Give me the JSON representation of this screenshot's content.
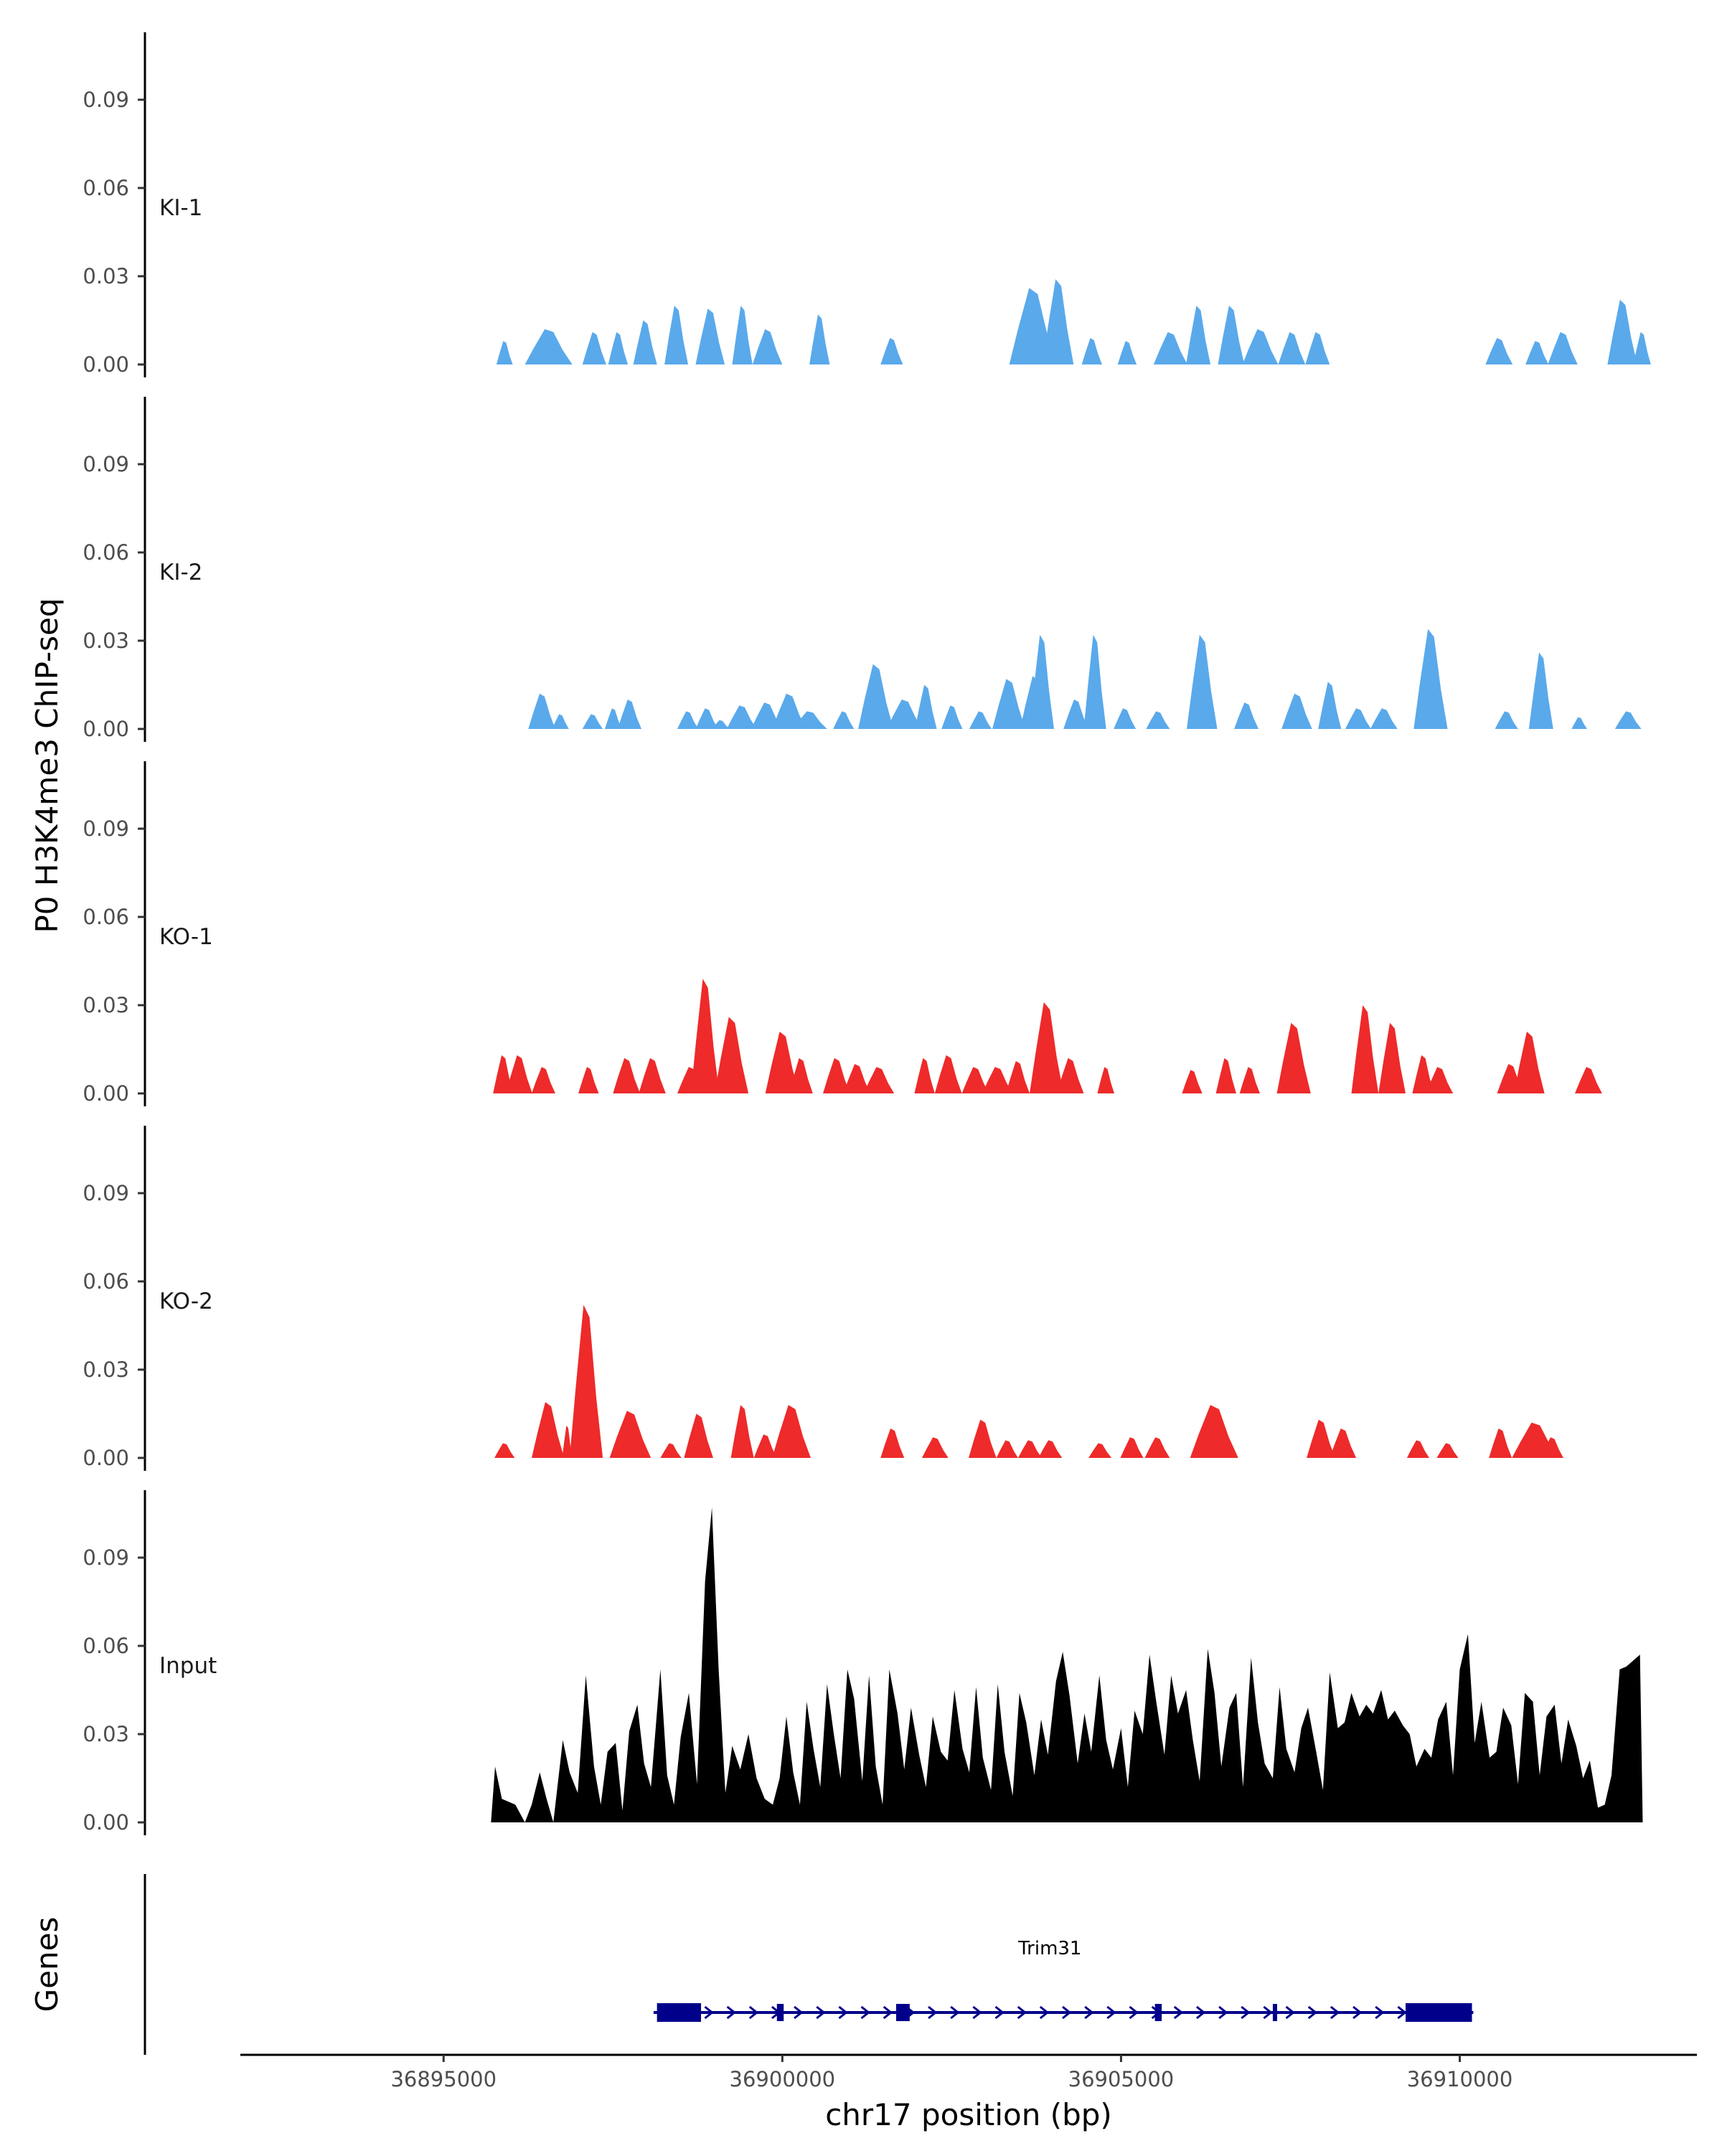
{
  "chart_data": {
    "type": "area",
    "ylabel": "P0 H3K4me3 ChIP-seq",
    "xlabel": "chr17 position (bp)",
    "gene_panel_label": "Genes",
    "xlim": [
      36892000,
      36913500
    ],
    "ylim": [
      0,
      0.11
    ],
    "xticks": [
      36895000,
      36900000,
      36905000,
      36910000
    ],
    "xtick_labels": [
      "36895000",
      "36900000",
      "36905000",
      "36910000"
    ],
    "yticks": [
      0.0,
      0.03,
      0.06,
      0.09
    ],
    "ytick_labels": [
      "0.00",
      "0.03",
      "0.06",
      "0.09"
    ],
    "colors": {
      "KI": "#5aa9eb",
      "KO": "#ee2a2a",
      "Input": "#000000",
      "gene": "#00008b"
    },
    "tracks": [
      {
        "name": "KI-1",
        "color": "#5aa9eb",
        "peaks": [
          [
            36895780,
            36896020,
            0.008
          ],
          [
            36896200,
            36896900,
            0.012
          ],
          [
            36897050,
            36897400,
            0.011
          ],
          [
            36897430,
            36897720,
            0.011
          ],
          [
            36897800,
            36898150,
            0.015
          ],
          [
            36898260,
            36898610,
            0.02
          ],
          [
            36898720,
            36899150,
            0.019
          ],
          [
            36899260,
            36899560,
            0.02
          ],
          [
            36899560,
            36900000,
            0.012
          ],
          [
            36900400,
            36900700,
            0.017
          ],
          [
            36901450,
            36901780,
            0.009
          ],
          [
            36903350,
            36904050,
            0.026
          ],
          [
            36903840,
            36904300,
            0.029
          ],
          [
            36904420,
            36904720,
            0.009
          ],
          [
            36904950,
            36905230,
            0.008
          ],
          [
            36905480,
            36905980,
            0.011
          ],
          [
            36905960,
            36906320,
            0.02
          ],
          [
            36906430,
            36906820,
            0.02
          ],
          [
            36906790,
            36907320,
            0.012
          ],
          [
            36907320,
            36907720,
            0.011
          ],
          [
            36907720,
            36908080,
            0.011
          ],
          [
            36910380,
            36910780,
            0.009
          ],
          [
            36910970,
            36911310,
            0.008
          ],
          [
            36911300,
            36911740,
            0.011
          ],
          [
            36912180,
            36912620,
            0.022
          ],
          [
            36912560,
            36912820,
            0.011
          ]
        ]
      },
      {
        "name": "KI-2",
        "color": "#5aa9eb",
        "peaks": [
          [
            36896250,
            36896650,
            0.012
          ],
          [
            36896600,
            36896850,
            0.005
          ],
          [
            36897050,
            36897350,
            0.005
          ],
          [
            36897380,
            36897630,
            0.007
          ],
          [
            36897570,
            36897920,
            0.01
          ],
          [
            36898450,
            36898760,
            0.006
          ],
          [
            36898720,
            36899050,
            0.007
          ],
          [
            36898960,
            36899220,
            0.003
          ],
          [
            36899180,
            36899620,
            0.008
          ],
          [
            36899540,
            36900000,
            0.009
          ],
          [
            36899850,
            36900350,
            0.012
          ],
          [
            36900150,
            36900660,
            0.006
          ],
          [
            36900750,
            36901060,
            0.006
          ],
          [
            36901120,
            36901640,
            0.022
          ],
          [
            36901540,
            36902070,
            0.01
          ],
          [
            36901960,
            36902280,
            0.015
          ],
          [
            36902350,
            36902660,
            0.008
          ],
          [
            36902760,
            36903090,
            0.006
          ],
          [
            36903100,
            36903590,
            0.017
          ],
          [
            36903510,
            36903950,
            0.018
          ],
          [
            36903650,
            36904010,
            0.032
          ],
          [
            36904150,
            36904520,
            0.01
          ],
          [
            36904450,
            36904780,
            0.032
          ],
          [
            36904890,
            36905220,
            0.007
          ],
          [
            36905370,
            36905720,
            0.006
          ],
          [
            36905970,
            36906420,
            0.032
          ],
          [
            36906670,
            36907030,
            0.009
          ],
          [
            36907370,
            36907820,
            0.012
          ],
          [
            36907910,
            36908250,
            0.016
          ],
          [
            36908310,
            36908690,
            0.007
          ],
          [
            36908680,
            36909080,
            0.007
          ],
          [
            36909320,
            36909820,
            0.034
          ],
          [
            36910520,
            36910860,
            0.006
          ],
          [
            36911020,
            36911380,
            0.026
          ],
          [
            36911650,
            36911880,
            0.004
          ],
          [
            36912290,
            36912680,
            0.006
          ]
        ]
      },
      {
        "name": "KO-1",
        "color": "#ee2a2a",
        "peaks": [
          [
            36895730,
            36896030,
            0.013
          ],
          [
            36895920,
            36896310,
            0.013
          ],
          [
            36896300,
            36896650,
            0.009
          ],
          [
            36896990,
            36897290,
            0.009
          ],
          [
            36897500,
            36897900,
            0.012
          ],
          [
            36897880,
            36898280,
            0.012
          ],
          [
            36898450,
            36898850,
            0.009
          ],
          [
            36898650,
            36899070,
            0.039
          ],
          [
            36899000,
            36899500,
            0.026
          ],
          [
            36899750,
            36900250,
            0.021
          ],
          [
            36900100,
            36900450,
            0.012
          ],
          [
            36900600,
            36901000,
            0.012
          ],
          [
            36900900,
            36901300,
            0.01
          ],
          [
            36901200,
            36901650,
            0.009
          ],
          [
            36901950,
            36902250,
            0.012
          ],
          [
            36902250,
            36902650,
            0.013
          ],
          [
            36902650,
            36903050,
            0.009
          ],
          [
            36902950,
            36903400,
            0.009
          ],
          [
            36903300,
            36903650,
            0.011
          ],
          [
            36903650,
            36904150,
            0.031
          ],
          [
            36904050,
            36904450,
            0.012
          ],
          [
            36904650,
            36904900,
            0.009
          ],
          [
            36905900,
            36906200,
            0.008
          ],
          [
            36906400,
            36906700,
            0.012
          ],
          [
            36906750,
            36907050,
            0.009
          ],
          [
            36907300,
            36907800,
            0.024
          ],
          [
            36908400,
            36908800,
            0.03
          ],
          [
            36908800,
            36909200,
            0.024
          ],
          [
            36909300,
            36909620,
            0.013
          ],
          [
            36909500,
            36909900,
            0.009
          ],
          [
            36910550,
            36910950,
            0.01
          ],
          [
            36910800,
            36911250,
            0.021
          ],
          [
            36911700,
            36912100,
            0.009
          ]
        ]
      },
      {
        "name": "KO-2",
        "color": "#ee2a2a",
        "peaks": [
          [
            36895750,
            36896050,
            0.005
          ],
          [
            36896300,
            36896780,
            0.019
          ],
          [
            36896750,
            36896900,
            0.011
          ],
          [
            36896860,
            36897350,
            0.052
          ],
          [
            36897450,
            36898060,
            0.016
          ],
          [
            36898200,
            36898510,
            0.005
          ],
          [
            36898550,
            36898980,
            0.015
          ],
          [
            36899240,
            36899580,
            0.018
          ],
          [
            36899580,
            36899920,
            0.008
          ],
          [
            36899850,
            36900420,
            0.018
          ],
          [
            36901450,
            36901800,
            0.01
          ],
          [
            36902060,
            36902450,
            0.007
          ],
          [
            36902750,
            36903160,
            0.013
          ],
          [
            36903160,
            36903480,
            0.006
          ],
          [
            36903480,
            36903830,
            0.006
          ],
          [
            36903780,
            36904130,
            0.006
          ],
          [
            36904520,
            36904860,
            0.005
          ],
          [
            36904990,
            36905330,
            0.007
          ],
          [
            36905350,
            36905720,
            0.007
          ],
          [
            36906020,
            36906730,
            0.018
          ],
          [
            36907740,
            36908160,
            0.013
          ],
          [
            36908080,
            36908470,
            0.01
          ],
          [
            36909220,
            36909550,
            0.006
          ],
          [
            36909660,
            36909980,
            0.005
          ],
          [
            36910430,
            36910770,
            0.01
          ],
          [
            36910770,
            36911460,
            0.012
          ],
          [
            36911200,
            36911530,
            0.007
          ]
        ]
      },
      {
        "name": "Input",
        "color": "#000000",
        "x": [
          36895700,
          36895760,
          36895860,
          36895960,
          36896060,
          36896200,
          36896300,
          36896420,
          36896520,
          36896620,
          36896760,
          36896860,
          36896980,
          36897100,
          36897220,
          36897320,
          36897420,
          36897540,
          36897640,
          36897740,
          36897860,
          36897960,
          36898060,
          36898200,
          36898300,
          36898400,
          36898500,
          36898620,
          36898740,
          36898860,
          36898960,
          36899060,
          36899160,
          36899260,
          36899380,
          36899500,
          36899620,
          36899740,
          36899860,
          36899960,
          36900060,
          36900160,
          36900260,
          36900360,
          36900460,
          36900560,
          36900660,
          36900760,
          36900860,
          36900960,
          36901060,
          36901180,
          36901280,
          36901380,
          36901480,
          36901580,
          36901700,
          36901800,
          36901900,
          36902020,
          36902120,
          36902220,
          36902340,
          36902440,
          36902540,
          36902660,
          36902760,
          36902860,
          36902960,
          36903080,
          36903180,
          36903280,
          36903400,
          36903500,
          36903600,
          36903720,
          36903820,
          36903920,
          36904040,
          36904140,
          36904240,
          36904360,
          36904460,
          36904560,
          36904680,
          36904780,
          36904880,
          36905000,
          36905100,
          36905200,
          36905320,
          36905420,
          36905520,
          36905640,
          36905740,
          36905840,
          36905960,
          36906060,
          36906160,
          36906280,
          36906380,
          36906480,
          36906600,
          36906700,
          36906800,
          36906920,
          36907020,
          36907120,
          36907240,
          36907340,
          36907440,
          36907560,
          36907660,
          36907760,
          36907880,
          36907980,
          36908080,
          36908200,
          36908300,
          36908400,
          36908520,
          36908620,
          36908720,
          36908840,
          36908940,
          36909040,
          36909160,
          36909260,
          36909360,
          36909480,
          36909580,
          36909680,
          36909800,
          36909900,
          36910000,
          36910120,
          36910220,
          36910320,
          36910440,
          36910540,
          36910640,
          36910760,
          36910860,
          36910960,
          36911080,
          36911180,
          36911280,
          36911400,
          36911500,
          36911600,
          36911720,
          36911820,
          36911920,
          36912040,
          36912140,
          36912240,
          36912360,
          36912460,
          36912560,
          36912660,
          36912700
        ],
        "y": [
          0.0,
          0.019,
          0.008,
          0.007,
          0.006,
          0.0,
          0.006,
          0.017,
          0.008,
          0.0,
          0.028,
          0.017,
          0.01,
          0.05,
          0.019,
          0.006,
          0.024,
          0.027,
          0.004,
          0.031,
          0.04,
          0.02,
          0.012,
          0.052,
          0.016,
          0.006,
          0.029,
          0.044,
          0.013,
          0.082,
          0.107,
          0.052,
          0.01,
          0.026,
          0.018,
          0.03,
          0.015,
          0.008,
          0.006,
          0.015,
          0.036,
          0.017,
          0.006,
          0.041,
          0.025,
          0.012,
          0.047,
          0.03,
          0.015,
          0.052,
          0.042,
          0.014,
          0.05,
          0.019,
          0.006,
          0.052,
          0.037,
          0.018,
          0.039,
          0.023,
          0.012,
          0.036,
          0.024,
          0.021,
          0.045,
          0.025,
          0.017,
          0.046,
          0.022,
          0.011,
          0.047,
          0.024,
          0.009,
          0.044,
          0.034,
          0.016,
          0.035,
          0.023,
          0.048,
          0.058,
          0.043,
          0.02,
          0.037,
          0.024,
          0.05,
          0.028,
          0.018,
          0.032,
          0.012,
          0.038,
          0.03,
          0.057,
          0.041,
          0.023,
          0.05,
          0.037,
          0.045,
          0.028,
          0.014,
          0.059,
          0.044,
          0.019,
          0.039,
          0.044,
          0.012,
          0.056,
          0.034,
          0.02,
          0.015,
          0.046,
          0.025,
          0.017,
          0.032,
          0.039,
          0.024,
          0.011,
          0.051,
          0.032,
          0.034,
          0.044,
          0.036,
          0.04,
          0.037,
          0.045,
          0.035,
          0.038,
          0.033,
          0.03,
          0.019,
          0.025,
          0.022,
          0.035,
          0.041,
          0.016,
          0.052,
          0.064,
          0.027,
          0.041,
          0.022,
          0.024,
          0.039,
          0.033,
          0.013,
          0.044,
          0.041,
          0.016,
          0.036,
          0.04,
          0.02,
          0.035,
          0.026,
          0.015,
          0.021,
          0.005,
          0.006,
          0.016,
          0.052,
          0.053,
          0.055,
          0.057,
          0.0
        ]
      }
    ],
    "gene": {
      "name": "Trim31",
      "start": 36898100,
      "end": 36910200,
      "strand": "+",
      "exons": [
        [
          36898150,
          36898800
        ],
        [
          36899920,
          36900020
        ],
        [
          36901680,
          36901880
        ],
        [
          36905500,
          36905600
        ],
        [
          36907240,
          36907300
        ],
        [
          36909200,
          36910180
        ]
      ]
    }
  }
}
